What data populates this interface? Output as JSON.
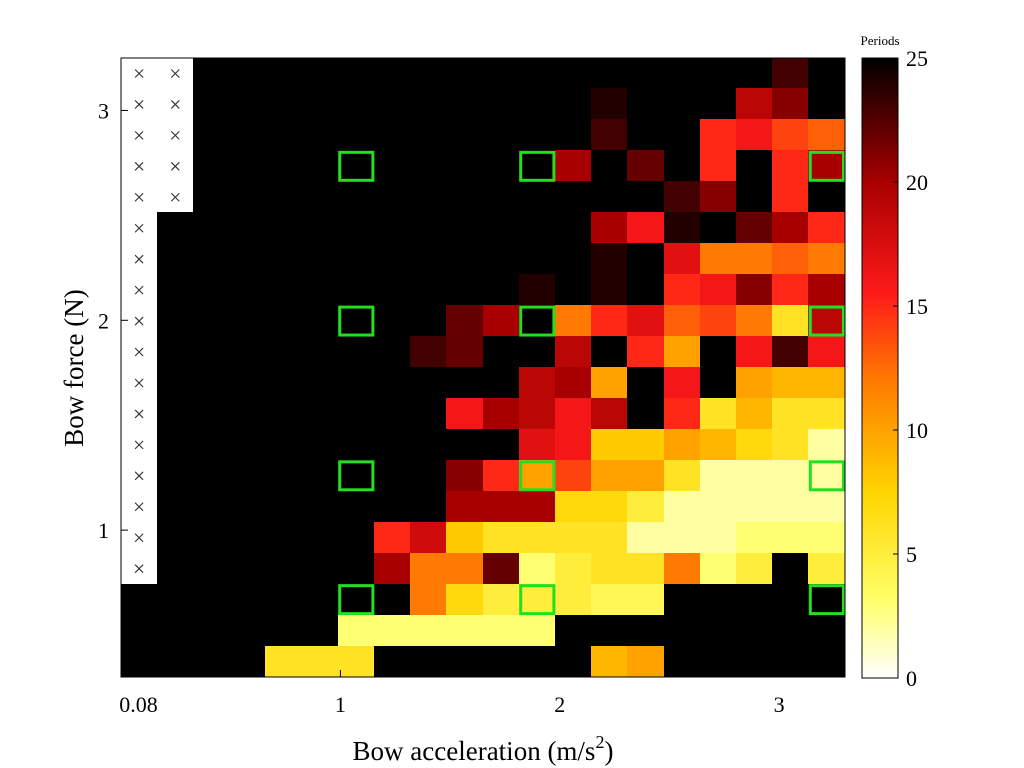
{
  "chart_data": {
    "type": "heatmap",
    "xlabel": "Bow acceleration (m/s",
    "xlabel_superscript": "2",
    "xlabel_close": ")",
    "ylabel": "Bow force (N)",
    "x_tick_labels": [
      "0.08",
      "1",
      "2",
      "3"
    ],
    "x_ticks": [
      0.08,
      1,
      2,
      3
    ],
    "y_tick_labels": [
      "1",
      "2",
      "3"
    ],
    "y_ticks": [
      1,
      2,
      3
    ],
    "xlim": [
      0,
      3.3
    ],
    "ylim": [
      0.3,
      3.25
    ],
    "x_centers": [
      0.08,
      0.24,
      0.41,
      0.57,
      0.73,
      0.9,
      1.06,
      1.22,
      1.39,
      1.55,
      1.71,
      1.88,
      2.04,
      2.2,
      2.37,
      2.53,
      2.69,
      2.86,
      3.02,
      3.18
    ],
    "y_centers": [
      0.39,
      0.54,
      0.68,
      0.83,
      0.98,
      1.12,
      1.27,
      1.42,
      1.56,
      1.71,
      1.86,
      2.0,
      2.15,
      2.3,
      2.44,
      2.59,
      2.74,
      2.88,
      3.03,
      3.18
    ],
    "colorbar": {
      "title": "Periods",
      "min": 0,
      "max": 25,
      "ticks": [
        0,
        5,
        10,
        15,
        20,
        25
      ],
      "colormap": "hot-reversed"
    },
    "values": [
      [
        25,
        25,
        25,
        25,
        25,
        25,
        25,
        25,
        25,
        25,
        25,
        25,
        25,
        25,
        25,
        25,
        25,
        25,
        23,
        25
      ],
      [
        25,
        25,
        25,
        25,
        25,
        25,
        25,
        25,
        25,
        25,
        25,
        25,
        25,
        24,
        25,
        25,
        25,
        19,
        21,
        25
      ],
      [
        25,
        25,
        25,
        25,
        25,
        25,
        25,
        25,
        25,
        25,
        25,
        25,
        25,
        23,
        25,
        25,
        15,
        16,
        14,
        13
      ],
      [
        25,
        25,
        25,
        25,
        25,
        25,
        25,
        25,
        25,
        25,
        25,
        25,
        20,
        25,
        22,
        25,
        15,
        25,
        15,
        20
      ],
      [
        25,
        25,
        25,
        25,
        25,
        25,
        25,
        25,
        25,
        25,
        25,
        25,
        25,
        25,
        25,
        23,
        21,
        25,
        15,
        25
      ],
      [
        25,
        25,
        25,
        25,
        25,
        25,
        25,
        25,
        25,
        25,
        25,
        25,
        25,
        20,
        16,
        24,
        25,
        22,
        20,
        15
      ],
      [
        25,
        25,
        25,
        25,
        25,
        25,
        25,
        25,
        25,
        25,
        25,
        25,
        25,
        24,
        25,
        17,
        12,
        12,
        13,
        12
      ],
      [
        25,
        25,
        25,
        25,
        25,
        25,
        25,
        25,
        25,
        25,
        25,
        24,
        25,
        24,
        25,
        15,
        16,
        21,
        15,
        20
      ],
      [
        25,
        25,
        25,
        25,
        25,
        25,
        25,
        25,
        25,
        22,
        20,
        25,
        12,
        15,
        17,
        13,
        14,
        12,
        6,
        19
      ],
      [
        25,
        25,
        25,
        25,
        25,
        25,
        25,
        25,
        23,
        22,
        25,
        25,
        19,
        25,
        15,
        10,
        25,
        16,
        23,
        16
      ],
      [
        25,
        25,
        25,
        25,
        25,
        25,
        25,
        25,
        25,
        25,
        25,
        19,
        20,
        10,
        25,
        16,
        25,
        10,
        9,
        9
      ],
      [
        25,
        25,
        25,
        25,
        25,
        25,
        25,
        25,
        25,
        16,
        20,
        19,
        16,
        19,
        25,
        15,
        6,
        9,
        6,
        6
      ],
      [
        25,
        25,
        25,
        25,
        25,
        25,
        25,
        25,
        25,
        25,
        25,
        17,
        16,
        8,
        8,
        10,
        9,
        7,
        6,
        2
      ],
      [
        25,
        25,
        25,
        25,
        25,
        25,
        25,
        25,
        25,
        21,
        15,
        10,
        14,
        10,
        10,
        6,
        2,
        2,
        2,
        2
      ],
      [
        25,
        25,
        25,
        25,
        25,
        25,
        25,
        25,
        25,
        20,
        20,
        20,
        7,
        7,
        5,
        2,
        2,
        2,
        2,
        2
      ],
      [
        25,
        25,
        25,
        25,
        25,
        25,
        25,
        15,
        18,
        8,
        6,
        6,
        6,
        6,
        2,
        2,
        2,
        3,
        3,
        3
      ],
      [
        25,
        25,
        25,
        25,
        25,
        25,
        25,
        20,
        12,
        12,
        22,
        3,
        5,
        6,
        6,
        12,
        3,
        5,
        25,
        5
      ],
      [
        25,
        25,
        25,
        25,
        25,
        25,
        25,
        25,
        12,
        7,
        5,
        5,
        5,
        4,
        4,
        25,
        25,
        25,
        25,
        25
      ],
      [
        25,
        25,
        25,
        25,
        25,
        25,
        3,
        3,
        3,
        3,
        3,
        3,
        25,
        25,
        25,
        25,
        25,
        25,
        25,
        25
      ],
      [
        25,
        25,
        25,
        25,
        6,
        6,
        6,
        25,
        25,
        25,
        25,
        25,
        25,
        9,
        10,
        25,
        25,
        25,
        25,
        25
      ]
    ],
    "missing_markers": [
      [
        0,
        0
      ],
      [
        1,
        0
      ],
      [
        0,
        1
      ],
      [
        1,
        1
      ],
      [
        0,
        2
      ],
      [
        1,
        2
      ],
      [
        0,
        3
      ],
      [
        1,
        3
      ],
      [
        0,
        4
      ],
      [
        1,
        4
      ],
      [
        0,
        5
      ],
      [
        0,
        6
      ],
      [
        0,
        7
      ],
      [
        0,
        8
      ],
      [
        0,
        9
      ],
      [
        0,
        10
      ],
      [
        0,
        11
      ],
      [
        0,
        12
      ],
      [
        0,
        13
      ],
      [
        0,
        14
      ],
      [
        0,
        15
      ],
      [
        0,
        16
      ]
    ],
    "highlighted_cells": [
      [
        6,
        3
      ],
      [
        11,
        3
      ],
      [
        19,
        3
      ],
      [
        6,
        8
      ],
      [
        11,
        8
      ],
      [
        19,
        8
      ],
      [
        6,
        13
      ],
      [
        11,
        13
      ],
      [
        19,
        13
      ],
      [
        6,
        17
      ],
      [
        11,
        17
      ],
      [
        19,
        17
      ]
    ],
    "highlight_color": "#22e01e"
  }
}
